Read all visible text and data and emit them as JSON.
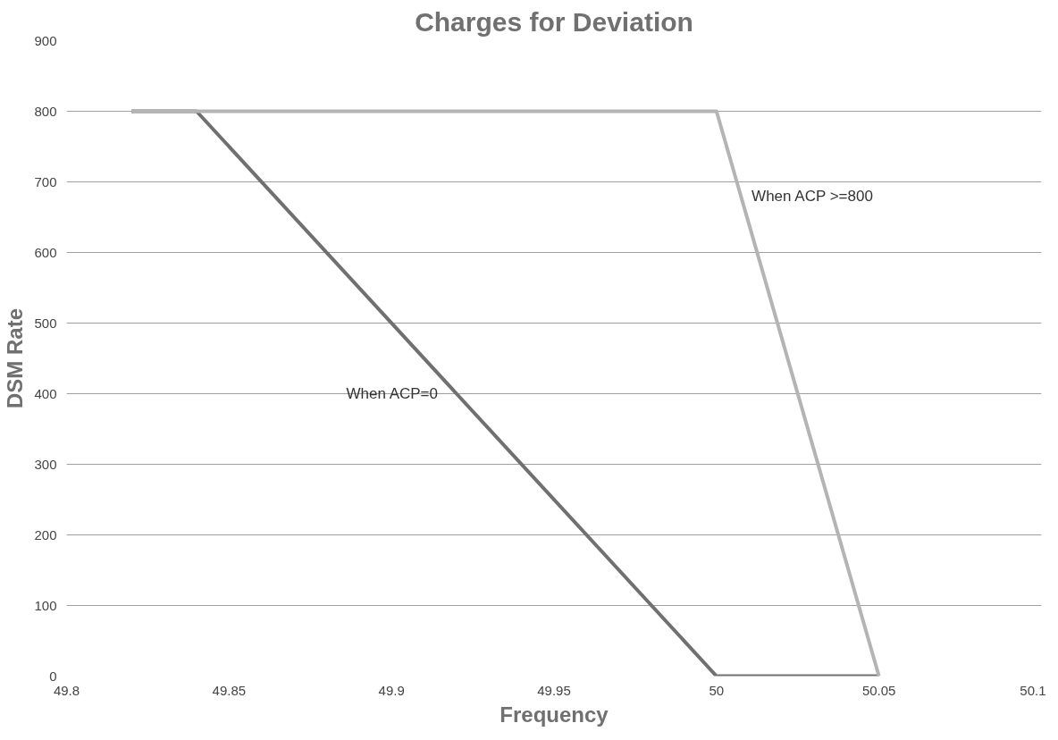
{
  "chart_data": {
    "type": "line",
    "title": "Charges for Deviation",
    "xlabel": "Frequency",
    "ylabel": "DSM Rate",
    "series": [
      {
        "name": "When ACP=0",
        "color": "#707070",
        "x": [
          49.82,
          49.84,
          50,
          50.05
        ],
        "values": [
          800,
          800,
          0,
          0
        ]
      },
      {
        "name": "When ACP >=800",
        "color": "#b4b4b4",
        "x": [
          49.82,
          50,
          50.05
        ],
        "values": [
          800,
          800,
          0
        ]
      }
    ],
    "xlim": [
      49.8,
      50.1
    ],
    "xticks": [
      49.8,
      49.85,
      49.9,
      49.95,
      50,
      50.05,
      50.1
    ],
    "ylim": [
      0,
      900
    ],
    "yticks": [
      0,
      100,
      200,
      300,
      400,
      500,
      600,
      700,
      800,
      900
    ],
    "grid": "y",
    "legend": false,
    "marker": "none",
    "line_style": "solid"
  }
}
